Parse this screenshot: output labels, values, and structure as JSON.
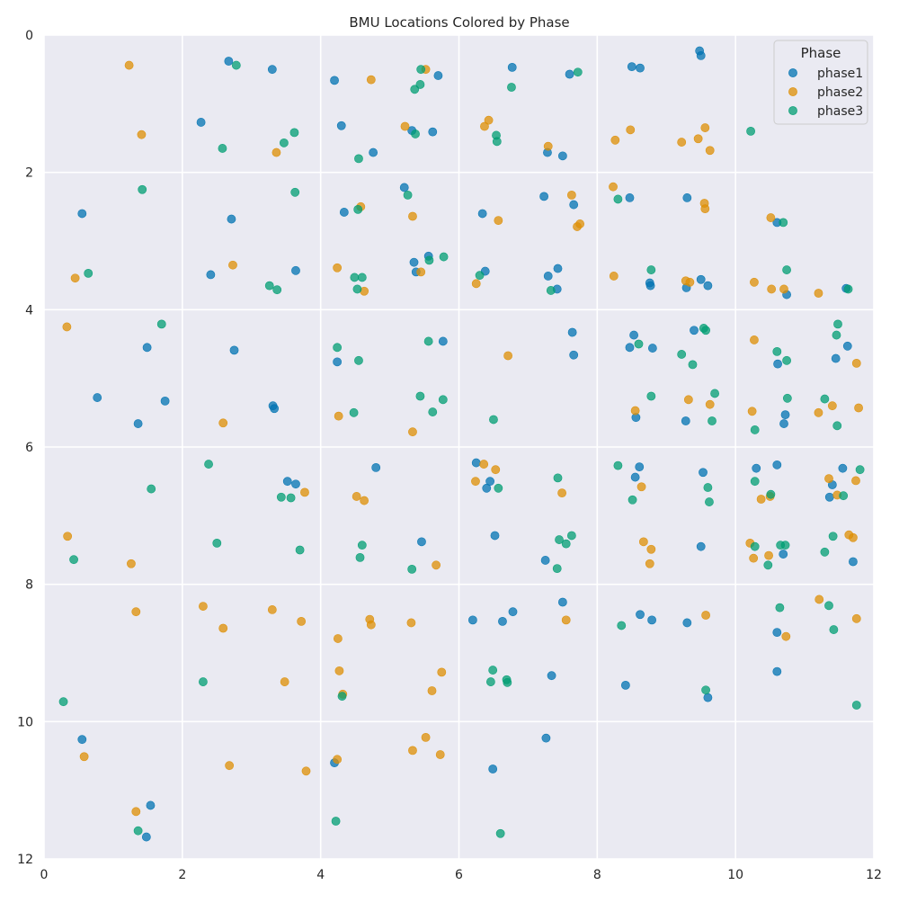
{
  "chart_data": {
    "type": "scatter",
    "title": "BMU Locations Colored by Phase",
    "xlabel": "",
    "ylabel": "",
    "xlim": [
      0,
      12
    ],
    "ylim": [
      0,
      12
    ],
    "y_inverted": true,
    "x_ticks": [
      0,
      2,
      4,
      6,
      8,
      10,
      12
    ],
    "y_ticks": [
      0,
      2,
      4,
      6,
      8,
      10,
      12
    ],
    "grid": true,
    "background": "#eaeaf2",
    "legend": {
      "title": "Phase",
      "position": "top-right"
    },
    "series": [
      {
        "name": "phase1",
        "color": "#0173b2",
        "points": [
          [
            9.48,
            0.23
          ],
          [
            9.5,
            0.3
          ],
          [
            2.67,
            0.38
          ],
          [
            3.3,
            0.5
          ],
          [
            6.77,
            0.47
          ],
          [
            8.5,
            0.46
          ],
          [
            8.62,
            0.48
          ],
          [
            7.6,
            0.57
          ],
          [
            4.2,
            0.66
          ],
          [
            5.7,
            0.59
          ],
          [
            2.27,
            1.27
          ],
          [
            4.3,
            1.32
          ],
          [
            5.32,
            1.39
          ],
          [
            5.62,
            1.41
          ],
          [
            4.76,
            1.71
          ],
          [
            7.28,
            1.71
          ],
          [
            7.5,
            1.76
          ],
          [
            0.55,
            2.6
          ],
          [
            2.71,
            2.68
          ],
          [
            5.21,
            2.22
          ],
          [
            4.34,
            2.58
          ],
          [
            6.34,
            2.6
          ],
          [
            7.23,
            2.35
          ],
          [
            7.66,
            2.47
          ],
          [
            8.47,
            2.37
          ],
          [
            9.3,
            2.37
          ],
          [
            10.6,
            2.73
          ],
          [
            2.41,
            3.49
          ],
          [
            3.64,
            3.43
          ],
          [
            5.35,
            3.31
          ],
          [
            5.38,
            3.45
          ],
          [
            5.56,
            3.22
          ],
          [
            6.38,
            3.44
          ],
          [
            7.29,
            3.51
          ],
          [
            7.43,
            3.4
          ],
          [
            7.42,
            3.7
          ],
          [
            8.76,
            3.61
          ],
          [
            8.77,
            3.65
          ],
          [
            9.29,
            3.68
          ],
          [
            9.5,
            3.56
          ],
          [
            9.6,
            3.65
          ],
          [
            10.74,
            3.78
          ],
          [
            11.6,
            3.69
          ],
          [
            1.49,
            4.55
          ],
          [
            2.75,
            4.59
          ],
          [
            4.24,
            4.76
          ],
          [
            5.77,
            4.46
          ],
          [
            7.64,
            4.33
          ],
          [
            7.66,
            4.66
          ],
          [
            8.47,
            4.55
          ],
          [
            8.53,
            4.37
          ],
          [
            8.8,
            4.56
          ],
          [
            9.4,
            4.3
          ],
          [
            10.61,
            4.79
          ],
          [
            11.45,
            4.71
          ],
          [
            11.62,
            4.53
          ],
          [
            0.77,
            5.28
          ],
          [
            1.36,
            5.66
          ],
          [
            1.75,
            5.33
          ],
          [
            3.31,
            5.4
          ],
          [
            3.33,
            5.44
          ],
          [
            8.56,
            5.57
          ],
          [
            9.28,
            5.62
          ],
          [
            10.72,
            5.53
          ],
          [
            10.7,
            5.66
          ],
          [
            4.8,
            6.3
          ],
          [
            6.25,
            6.23
          ],
          [
            6.4,
            6.6
          ],
          [
            6.45,
            6.5
          ],
          [
            8.55,
            6.44
          ],
          [
            8.61,
            6.29
          ],
          [
            9.53,
            6.37
          ],
          [
            10.3,
            6.31
          ],
          [
            10.6,
            6.26
          ],
          [
            11.55,
            6.31
          ],
          [
            11.4,
            6.55
          ],
          [
            11.36,
            6.73
          ],
          [
            3.52,
            6.5
          ],
          [
            3.64,
            6.54
          ],
          [
            5.46,
            7.38
          ],
          [
            6.52,
            7.29
          ],
          [
            7.25,
            7.65
          ],
          [
            9.5,
            7.45
          ],
          [
            10.69,
            7.56
          ],
          [
            11.7,
            7.67
          ],
          [
            6.2,
            8.52
          ],
          [
            6.63,
            8.54
          ],
          [
            6.78,
            8.4
          ],
          [
            7.5,
            8.26
          ],
          [
            8.62,
            8.44
          ],
          [
            8.79,
            8.52
          ],
          [
            9.3,
            8.56
          ],
          [
            10.6,
            8.7
          ],
          [
            7.34,
            9.33
          ],
          [
            8.41,
            9.47
          ],
          [
            10.6,
            9.27
          ],
          [
            9.6,
            9.65
          ],
          [
            0.55,
            10.26
          ],
          [
            7.26,
            10.24
          ],
          [
            4.2,
            10.6
          ],
          [
            6.49,
            10.69
          ],
          [
            1.54,
            11.22
          ],
          [
            1.48,
            11.68
          ]
        ]
      },
      {
        "name": "phase2",
        "color": "#de8f05",
        "points": [
          [
            1.23,
            0.44
          ],
          [
            5.52,
            0.5
          ],
          [
            4.73,
            0.65
          ],
          [
            1.41,
            1.45
          ],
          [
            3.36,
            1.71
          ],
          [
            5.22,
            1.33
          ],
          [
            6.43,
            1.24
          ],
          [
            6.37,
            1.33
          ],
          [
            7.29,
            1.62
          ],
          [
            8.26,
            1.53
          ],
          [
            8.48,
            1.38
          ],
          [
            9.56,
            1.35
          ],
          [
            9.22,
            1.56
          ],
          [
            9.46,
            1.51
          ],
          [
            9.63,
            1.68
          ],
          [
            4.58,
            2.5
          ],
          [
            5.33,
            2.64
          ],
          [
            6.57,
            2.7
          ],
          [
            7.63,
            2.33
          ],
          [
            7.75,
            2.75
          ],
          [
            7.71,
            2.79
          ],
          [
            8.23,
            2.21
          ],
          [
            9.55,
            2.45
          ],
          [
            9.56,
            2.53
          ],
          [
            10.51,
            2.66
          ],
          [
            0.45,
            3.54
          ],
          [
            2.73,
            3.35
          ],
          [
            4.24,
            3.39
          ],
          [
            4.63,
            3.73
          ],
          [
            5.45,
            3.45
          ],
          [
            6.25,
            3.62
          ],
          [
            8.24,
            3.51
          ],
          [
            9.28,
            3.58
          ],
          [
            9.34,
            3.6
          ],
          [
            10.27,
            3.6
          ],
          [
            10.52,
            3.7
          ],
          [
            10.7,
            3.7
          ],
          [
            11.2,
            3.76
          ],
          [
            0.33,
            4.25
          ],
          [
            6.71,
            4.67
          ],
          [
            10.27,
            4.44
          ],
          [
            11.75,
            4.78
          ],
          [
            2.59,
            5.65
          ],
          [
            4.26,
            5.55
          ],
          [
            5.33,
            5.78
          ],
          [
            9.32,
            5.31
          ],
          [
            8.55,
            5.47
          ],
          [
            9.63,
            5.38
          ],
          [
            10.24,
            5.48
          ],
          [
            11.2,
            5.5
          ],
          [
            11.4,
            5.4
          ],
          [
            11.78,
            5.43
          ],
          [
            6.36,
            6.25
          ],
          [
            6.53,
            6.33
          ],
          [
            6.24,
            6.5
          ],
          [
            3.77,
            6.66
          ],
          [
            4.52,
            6.72
          ],
          [
            4.63,
            6.78
          ],
          [
            7.49,
            6.67
          ],
          [
            8.64,
            6.58
          ],
          [
            10.37,
            6.76
          ],
          [
            10.5,
            6.72
          ],
          [
            11.35,
            6.46
          ],
          [
            11.47,
            6.7
          ],
          [
            11.74,
            6.49
          ],
          [
            0.34,
            7.3
          ],
          [
            1.26,
            7.7
          ],
          [
            5.67,
            7.72
          ],
          [
            8.67,
            7.38
          ],
          [
            8.78,
            7.49
          ],
          [
            8.76,
            7.7
          ],
          [
            10.21,
            7.4
          ],
          [
            10.26,
            7.62
          ],
          [
            10.48,
            7.58
          ],
          [
            11.64,
            7.28
          ],
          [
            11.7,
            7.32
          ],
          [
            1.33,
            8.4
          ],
          [
            2.3,
            8.32
          ],
          [
            3.3,
            8.37
          ],
          [
            3.72,
            8.54
          ],
          [
            2.59,
            8.64
          ],
          [
            4.71,
            8.51
          ],
          [
            4.73,
            8.59
          ],
          [
            5.31,
            8.56
          ],
          [
            7.55,
            8.52
          ],
          [
            9.57,
            8.45
          ],
          [
            10.73,
            8.76
          ],
          [
            11.21,
            8.22
          ],
          [
            11.75,
            8.5
          ],
          [
            4.25,
            8.79
          ],
          [
            4.27,
            9.26
          ],
          [
            3.48,
            9.42
          ],
          [
            4.32,
            9.6
          ],
          [
            5.61,
            9.55
          ],
          [
            5.75,
            9.28
          ],
          [
            5.52,
            10.23
          ],
          [
            5.33,
            10.42
          ],
          [
            5.73,
            10.48
          ],
          [
            0.58,
            10.51
          ],
          [
            2.68,
            10.64
          ],
          [
            3.79,
            10.72
          ],
          [
            4.24,
            10.55
          ],
          [
            1.33,
            11.31
          ]
        ]
      },
      {
        "name": "phase3",
        "color": "#029e73",
        "points": [
          [
            2.78,
            0.44
          ],
          [
            5.45,
            0.5
          ],
          [
            5.44,
            0.72
          ],
          [
            5.36,
            0.79
          ],
          [
            7.72,
            0.54
          ],
          [
            6.76,
            0.76
          ],
          [
            3.62,
            1.42
          ],
          [
            3.47,
            1.57
          ],
          [
            5.37,
            1.44
          ],
          [
            6.54,
            1.46
          ],
          [
            6.55,
            1.55
          ],
          [
            2.58,
            1.65
          ],
          [
            4.55,
            1.8
          ],
          [
            10.22,
            1.4
          ],
          [
            1.42,
            2.25
          ],
          [
            3.63,
            2.29
          ],
          [
            5.26,
            2.33
          ],
          [
            4.54,
            2.54
          ],
          [
            8.3,
            2.39
          ],
          [
            10.69,
            2.73
          ],
          [
            0.64,
            3.47
          ],
          [
            3.26,
            3.65
          ],
          [
            3.37,
            3.71
          ],
          [
            4.49,
            3.53
          ],
          [
            4.6,
            3.53
          ],
          [
            4.53,
            3.7
          ],
          [
            5.57,
            3.28
          ],
          [
            5.78,
            3.23
          ],
          [
            6.3,
            3.5
          ],
          [
            7.33,
            3.72
          ],
          [
            8.78,
            3.42
          ],
          [
            10.74,
            3.42
          ],
          [
            11.63,
            3.7
          ],
          [
            1.7,
            4.21
          ],
          [
            4.24,
            4.55
          ],
          [
            4.55,
            4.74
          ],
          [
            5.56,
            4.46
          ],
          [
            8.6,
            4.5
          ],
          [
            9.22,
            4.65
          ],
          [
            9.38,
            4.8
          ],
          [
            9.54,
            4.27
          ],
          [
            9.57,
            4.3
          ],
          [
            10.6,
            4.61
          ],
          [
            10.74,
            4.74
          ],
          [
            11.48,
            4.21
          ],
          [
            11.46,
            4.37
          ],
          [
            4.48,
            5.5
          ],
          [
            5.44,
            5.26
          ],
          [
            5.62,
            5.49
          ],
          [
            5.77,
            5.31
          ],
          [
            6.5,
            5.6
          ],
          [
            8.78,
            5.26
          ],
          [
            9.7,
            5.22
          ],
          [
            9.66,
            5.62
          ],
          [
            10.28,
            5.75
          ],
          [
            10.75,
            5.29
          ],
          [
            11.29,
            5.3
          ],
          [
            11.47,
            5.69
          ],
          [
            2.38,
            6.25
          ],
          [
            1.55,
            6.61
          ],
          [
            3.43,
            6.73
          ],
          [
            3.57,
            6.74
          ],
          [
            6.57,
            6.6
          ],
          [
            7.43,
            6.45
          ],
          [
            8.3,
            6.27
          ],
          [
            8.51,
            6.77
          ],
          [
            9.6,
            6.59
          ],
          [
            9.62,
            6.8
          ],
          [
            10.28,
            6.5
          ],
          [
            10.51,
            6.69
          ],
          [
            11.56,
            6.71
          ],
          [
            11.8,
            6.33
          ],
          [
            0.43,
            7.64
          ],
          [
            2.5,
            7.4
          ],
          [
            3.7,
            7.5
          ],
          [
            4.6,
            7.43
          ],
          [
            4.57,
            7.61
          ],
          [
            5.32,
            7.78
          ],
          [
            7.45,
            7.35
          ],
          [
            7.55,
            7.41
          ],
          [
            7.63,
            7.29
          ],
          [
            7.42,
            7.77
          ],
          [
            10.28,
            7.45
          ],
          [
            10.47,
            7.72
          ],
          [
            10.65,
            7.43
          ],
          [
            10.72,
            7.43
          ],
          [
            11.29,
            7.53
          ],
          [
            11.41,
            7.3
          ],
          [
            8.35,
            8.6
          ],
          [
            10.64,
            8.34
          ],
          [
            11.35,
            8.31
          ],
          [
            11.42,
            8.66
          ],
          [
            0.28,
            9.71
          ],
          [
            2.3,
            9.42
          ],
          [
            4.31,
            9.63
          ],
          [
            6.49,
            9.25
          ],
          [
            6.46,
            9.42
          ],
          [
            6.7,
            9.43
          ],
          [
            6.69,
            9.39
          ],
          [
            9.57,
            9.54
          ],
          [
            11.75,
            9.76
          ],
          [
            4.22,
            11.45
          ],
          [
            1.36,
            11.59
          ],
          [
            6.6,
            11.63
          ]
        ]
      }
    ]
  }
}
